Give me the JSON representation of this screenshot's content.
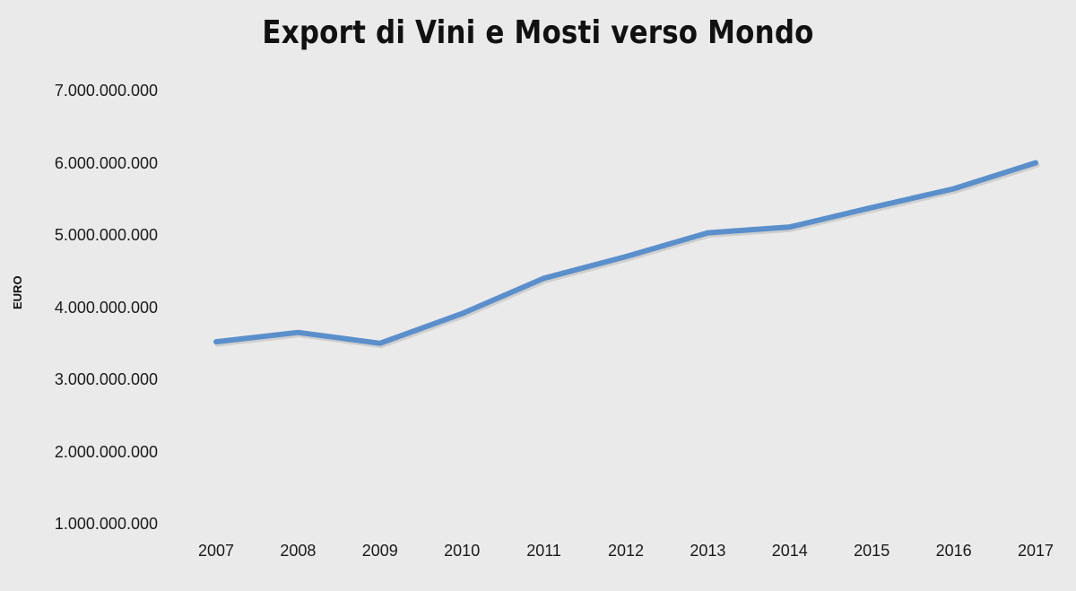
{
  "chart_data": {
    "type": "line",
    "title": "Export di Vini  e Mosti verso Mondo",
    "xlabel": "",
    "ylabel": "EURO",
    "categories": [
      "2007",
      "2008",
      "2009",
      "2010",
      "2011",
      "2012",
      "2013",
      "2014",
      "2015",
      "2016",
      "2017"
    ],
    "series": [
      {
        "name": "Export di Vini e Mosti",
        "color": "#5b8fcb",
        "values": [
          3520000000,
          3650000000,
          3500000000,
          3910000000,
          4400000000,
          4700000000,
          5030000000,
          5110000000,
          5380000000,
          5640000000,
          6000000000
        ]
      }
    ],
    "ylim": [
      1000000000,
      7000000000
    ],
    "yticks": [
      "1.000.000.000",
      "2.000.000.000",
      "3.000.000.000",
      "4.000.000.000",
      "5.000.000.000",
      "6.000.000.000",
      "7.000.000.000"
    ],
    "grid": false,
    "legend": "none"
  }
}
